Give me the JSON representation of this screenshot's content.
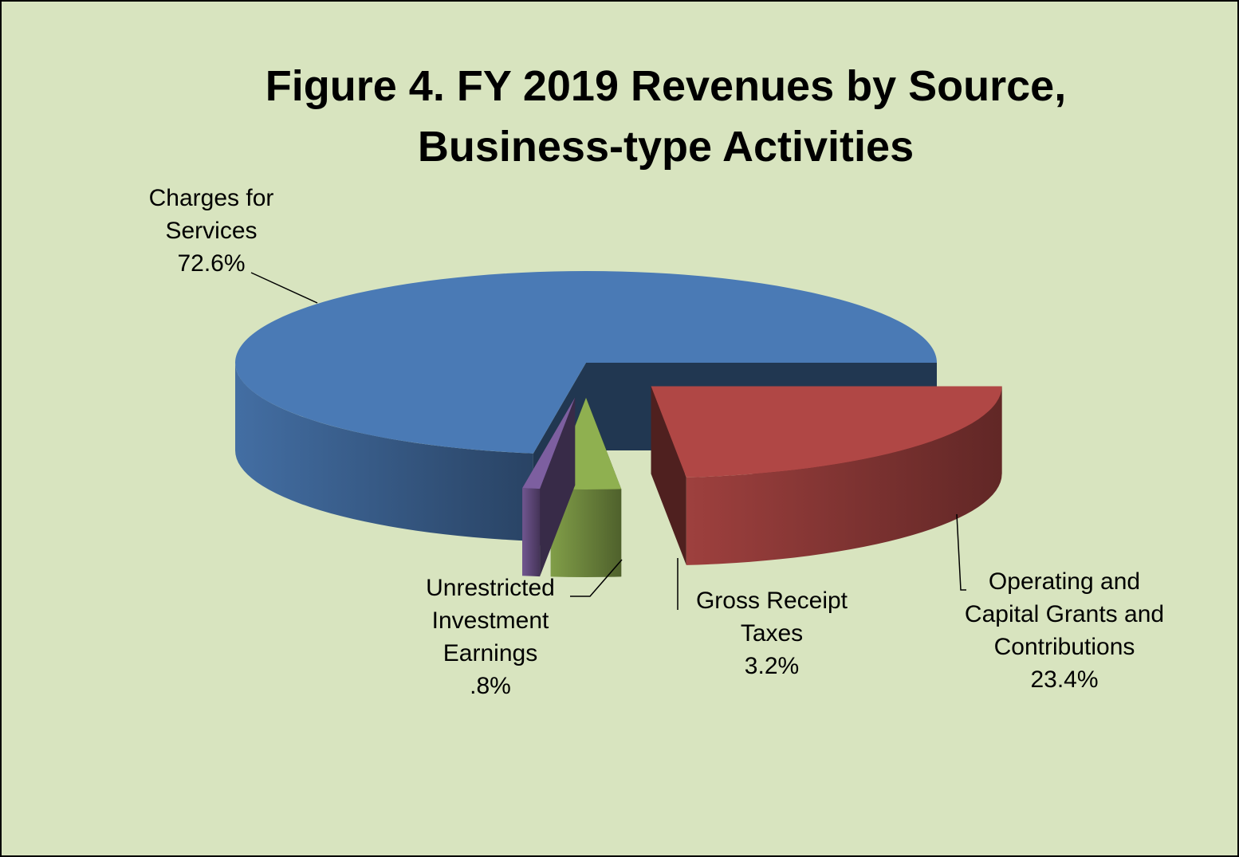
{
  "chart_data": {
    "type": "pie3d",
    "title": [
      "Figure 4. FY 2019 Revenues by Source,",
      "Business-type Activities"
    ],
    "categories": [
      "Charges for Services",
      "Unrestricted Investment Earnings",
      "Gross Receipt Taxes",
      "Operating and Capital Grants and Contributions"
    ],
    "values": [
      72.6,
      0.8,
      3.2,
      23.4
    ],
    "value_labels": [
      "72.6%",
      ".8%",
      "3.2%",
      "23.4%"
    ],
    "colors": [
      "#4a7ab5",
      "#7d5fa0",
      "#8fb050",
      "#b04745"
    ]
  }
}
